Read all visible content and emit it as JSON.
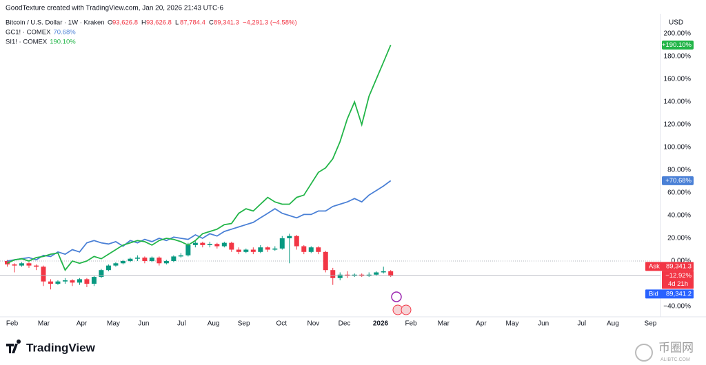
{
  "header": {
    "caption": "GoodTexture created with TradingView.com, Jan 20, 2026 21:43 UTC-6"
  },
  "chart_data": {
    "type": "candlestick",
    "symbol": "Bitcoin / U.S. Dollar · 1W · Kraken",
    "ohlc_legend": [
      {
        "label": "O",
        "value": "93,626.8"
      },
      {
        "label": "H",
        "value": "93,626.8"
      },
      {
        "label": "L",
        "value": "87,784.4"
      },
      {
        "label": "C",
        "value": "89,341.3"
      },
      {
        "label": "change",
        "value": "−4,291.3 (−4.58%)"
      }
    ],
    "currency": "USD",
    "up_color": "#089981",
    "down_color": "#f23645",
    "xlim": [
      -1,
      90
    ],
    "xticks": [
      {
        "value": 0.67,
        "label": "Feb"
      },
      {
        "value": 5.05,
        "label": "Mar"
      },
      {
        "value": 10.29,
        "label": "Apr"
      },
      {
        "value": 14.67,
        "label": "May"
      },
      {
        "value": 18.86,
        "label": "Jun"
      },
      {
        "value": 24.1,
        "label": "Jul"
      },
      {
        "value": 28.5,
        "label": "Aug"
      },
      {
        "value": 32.7,
        "label": "Sep"
      },
      {
        "value": 37.9,
        "label": "Oct"
      },
      {
        "value": 42.3,
        "label": "Nov"
      },
      {
        "value": 46.6,
        "label": "Dec"
      },
      {
        "value": 51.6,
        "label": "2026"
      },
      {
        "value": 55.8,
        "label": "Feb"
      },
      {
        "value": 60.3,
        "label": "Mar"
      },
      {
        "value": 65.5,
        "label": "Apr"
      },
      {
        "value": 69.8,
        "label": "May"
      },
      {
        "value": 74.1,
        "label": "Jun"
      },
      {
        "value": 79.4,
        "label": "Jul"
      },
      {
        "value": 83.7,
        "label": "Aug"
      },
      {
        "value": 88.9,
        "label": "Sep"
      }
    ],
    "ylim": [
      -46,
      204
    ],
    "yticks": [
      {
        "value": 200,
        "label": "200.00%"
      },
      {
        "value": 180,
        "label": "180.00%"
      },
      {
        "value": 160,
        "label": "160.00%"
      },
      {
        "value": 140,
        "label": "140.00%"
      },
      {
        "value": 120,
        "label": "120.00%"
      },
      {
        "value": 100,
        "label": "100.00%"
      },
      {
        "value": 80,
        "label": "80.00%"
      },
      {
        "value": 60,
        "label": "60.00%"
      },
      {
        "value": 40,
        "label": "40.00%"
      },
      {
        "value": 20,
        "label": "20.00%"
      },
      {
        "value": 0,
        "label": "0.00%"
      },
      {
        "value": -40,
        "label": "−40.00%"
      }
    ],
    "x": [
      0,
      1,
      2,
      3,
      4,
      5,
      6,
      7,
      8,
      9,
      10,
      11,
      12,
      13,
      14,
      15,
      16,
      17,
      18,
      19,
      20,
      21,
      22,
      23,
      24,
      25,
      26,
      27,
      28,
      29,
      30,
      31,
      32,
      33,
      34,
      35,
      36,
      37,
      38,
      39,
      40,
      41,
      42,
      43,
      44,
      45,
      46,
      47,
      48,
      49,
      50,
      51,
      52,
      53
    ],
    "open": [
      0,
      -3,
      -4,
      -2,
      -4,
      -5,
      -18,
      -20,
      -18,
      -17,
      -19,
      -16,
      -20,
      -14,
      -8,
      -4,
      -2,
      0,
      2,
      3,
      0,
      3,
      -2,
      0,
      4,
      5,
      14,
      16,
      14,
      15,
      13,
      16,
      10,
      8,
      10,
      8,
      12,
      10,
      11,
      20,
      22,
      13,
      8,
      12,
      8,
      -8,
      -15,
      -12,
      -13,
      -12,
      -13,
      -12,
      -10,
      -9
    ],
    "high": [
      1,
      -2,
      -1,
      -1,
      -3,
      -4,
      -16,
      -17,
      -15,
      -16,
      -15,
      -15,
      -13,
      -7,
      -3,
      -1,
      1,
      3,
      5,
      4,
      4,
      4,
      1,
      5,
      7,
      16,
      18,
      17,
      17,
      16,
      17,
      17,
      12,
      11,
      12,
      14,
      13,
      13,
      22,
      24,
      23,
      14,
      13,
      13,
      9,
      -6,
      -10,
      -9,
      -11,
      -11,
      -10,
      -9,
      -5,
      -8
    ],
    "low": [
      -5,
      -10,
      -5,
      -6,
      -8,
      -22,
      -25,
      -21,
      -20,
      -22,
      -21,
      -23,
      -22,
      -15,
      -9,
      -5,
      -3,
      -1,
      0,
      -2,
      -1,
      -4,
      -3,
      -1,
      3,
      4,
      12,
      12,
      12,
      11,
      12,
      8,
      6,
      7,
      6,
      7,
      8,
      9,
      10,
      -2,
      10,
      6,
      7,
      6,
      -10,
      -21,
      -17,
      -15,
      -14,
      -14,
      -14,
      -13,
      -11,
      -14
    ],
    "close": [
      -3,
      -4,
      -2,
      -4,
      -5,
      -18,
      -20,
      -18,
      -17,
      -19,
      -16,
      -20,
      -14,
      -8,
      -4,
      -2,
      0,
      2,
      3,
      0,
      3,
      -2,
      0,
      4,
      5,
      14,
      16,
      14,
      15,
      13,
      16,
      10,
      8,
      10,
      8,
      12,
      10,
      11,
      20,
      22,
      13,
      8,
      12,
      8,
      -8,
      -15,
      -12,
      -13,
      -12,
      -13,
      -12,
      -10,
      -9,
      -12.92
    ],
    "last_change_label": "−12.92%",
    "countdown": "4d 21h",
    "ask": {
      "label": "Ask",
      "value": "89,341.3"
    },
    "bid": {
      "label": "Bid",
      "value": "89,341.2"
    },
    "series": [
      {
        "name": "GC1! · COMEX",
        "legend_value": "70.68%",
        "last_label": "+70.68%",
        "color": "#4a80d6",
        "values": [
          0,
          1,
          2,
          3,
          1,
          5,
          4,
          8,
          6,
          10,
          8,
          16,
          18,
          16,
          15,
          17,
          13,
          18,
          16,
          19,
          17,
          20,
          18,
          21,
          20,
          19,
          23,
          20,
          24,
          22,
          26,
          28,
          30,
          32,
          34,
          38,
          42,
          46,
          42,
          40,
          38,
          41,
          41,
          44,
          44,
          48,
          50,
          52,
          55,
          52,
          58,
          62,
          66,
          70.68
        ]
      },
      {
        "name": "SI1! · COMEX",
        "legend_value": "190.10%",
        "last_label": "+190.10%",
        "color": "#22b548",
        "values": [
          -2,
          1,
          2,
          0,
          3,
          4,
          6,
          7,
          -8,
          0,
          -2,
          0,
          4,
          2,
          6,
          10,
          14,
          16,
          18,
          17,
          14,
          18,
          20,
          19,
          17,
          14,
          18,
          24,
          26,
          28,
          32,
          33,
          42,
          46,
          44,
          50,
          56,
          52,
          50,
          50,
          56,
          58,
          68,
          78,
          82,
          90,
          105,
          125,
          140,
          120,
          145,
          160,
          175,
          190.1
        ]
      }
    ]
  },
  "footer": {
    "brand": "TradingView",
    "watermark": "币圈网",
    "watermark_sub": "ALIBTC.COM"
  }
}
